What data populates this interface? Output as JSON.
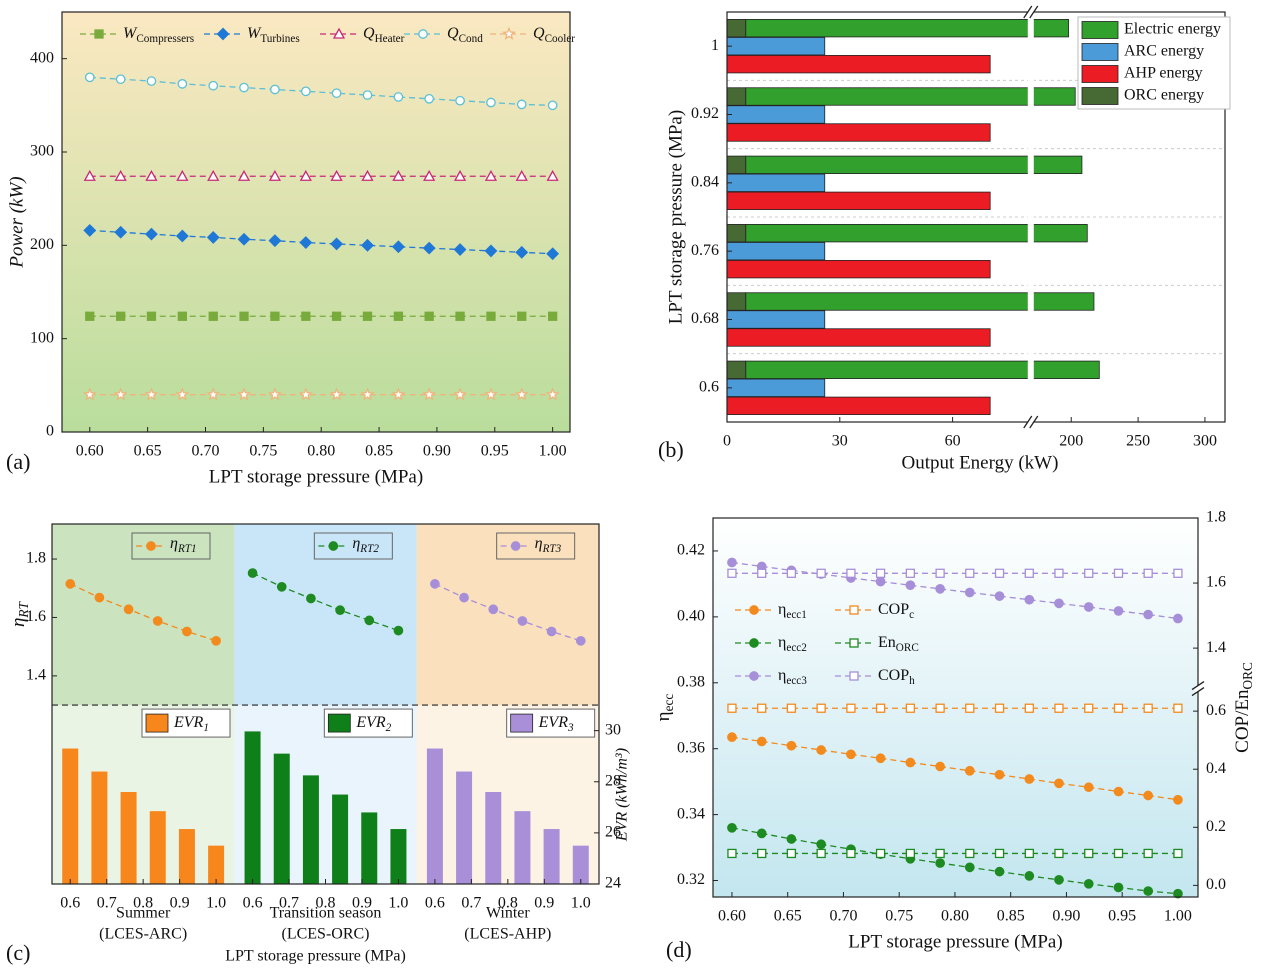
{
  "chart_data": [
    {
      "type": "line",
      "panel": "(a)",
      "xlabel": "LPT storage pressure (MPa)",
      "ylabel": "Power (kW)",
      "x": [
        0.6,
        0.6267,
        0.6533,
        0.68,
        0.7067,
        0.7333,
        0.76,
        0.7867,
        0.8133,
        0.84,
        0.8667,
        0.8933,
        0.92,
        0.9467,
        0.9733,
        1.0
      ],
      "xlim": [
        0.576,
        1.015
      ],
      "xticks": [
        {
          "value": 0.6,
          "label": "0.60"
        },
        {
          "value": 0.65,
          "label": "0.65"
        },
        {
          "value": 0.7,
          "label": "0.70"
        },
        {
          "value": 0.75,
          "label": "0.75"
        },
        {
          "value": 0.8,
          "label": "0.80"
        },
        {
          "value": 0.85,
          "label": "0.85"
        },
        {
          "value": 0.9,
          "label": "0.90"
        },
        {
          "value": 0.95,
          "label": "0.95"
        },
        {
          "value": 1.0,
          "label": "1.00"
        }
      ],
      "ylim": [
        0,
        450
      ],
      "yticks": [
        0,
        100,
        200,
        300,
        400
      ],
      "legend": "top",
      "series": [
        {
          "name": "W",
          "sub": "Compressers",
          "color": "#79ab3c",
          "marker": "square",
          "filled": true,
          "values": [
            124,
            124,
            124,
            124,
            124,
            124,
            124,
            124,
            124,
            124,
            124,
            124,
            124,
            124,
            124,
            124
          ]
        },
        {
          "name": "W",
          "sub": "Turbines",
          "color": "#1f78d6",
          "marker": "diamond",
          "filled": true,
          "values": [
            216,
            214,
            212,
            210,
            208.5,
            206.5,
            205,
            203,
            201.5,
            200,
            198.5,
            197,
            195.5,
            194,
            192.5,
            191
          ]
        },
        {
          "name": "Q",
          "sub": "Heater",
          "color": "#c8297a",
          "marker": "triangle",
          "filled": false,
          "values": [
            274,
            274,
            274,
            274,
            274,
            274,
            274,
            274,
            274,
            274,
            274,
            274,
            274,
            274,
            274,
            274
          ]
        },
        {
          "name": "Q",
          "sub": "Cond",
          "color": "#5bbfd6",
          "marker": "circle",
          "filled": false,
          "values": [
            380,
            378,
            376,
            373,
            371,
            369,
            367,
            365,
            363,
            361,
            359,
            357,
            355,
            353,
            351,
            350
          ]
        },
        {
          "name": "Q",
          "sub": "Cooler",
          "color": "#eeb47c",
          "marker": "star",
          "filled": false,
          "values": [
            40,
            40,
            40,
            40,
            40,
            40,
            40,
            40,
            40,
            40,
            40,
            40,
            40,
            40,
            40,
            40
          ]
        }
      ]
    },
    {
      "type": "bar",
      "orientation": "horizontal",
      "panel": "(b)",
      "xlabel": "Output Energy (kW)",
      "ylabel": "LPT storage pressure (MPa)",
      "categories": [
        "0.6",
        "0.68",
        "0.76",
        "0.84",
        "0.92",
        "1"
      ],
      "xlim": [
        0,
        315
      ],
      "xbreak": [
        80,
        172
      ],
      "xticks": [
        0,
        30,
        60,
        200,
        250,
        300
      ],
      "grid": true,
      "legend": "upper right",
      "series": [
        {
          "name": "Electric energy",
          "color": "#32a02c",
          "group": 0,
          "values": [
            216,
            212,
            207,
            203,
            198,
            193
          ]
        },
        {
          "name": "ARC energy",
          "color": "#4c9bd9",
          "group": 1,
          "values": [
            26,
            26,
            26,
            26,
            26,
            26
          ]
        },
        {
          "name": "AHP energy",
          "color": "#ec1c24",
          "group": 2,
          "values": [
            70,
            70,
            70,
            70,
            70,
            70
          ]
        },
        {
          "name": "ORC energy",
          "color": "#476a35",
          "group": 0,
          "values": [
            5,
            5,
            5,
            5,
            5,
            5
          ]
        }
      ]
    },
    {
      "type": "panels",
      "panel": "(c)",
      "xlabel": "LPT storage pressure (MPa)",
      "ylabel": "η",
      "ylabel_sub": "RT",
      "y2label": "EVR (kWh/m³)",
      "x": [
        0.6,
        0.68,
        0.76,
        0.84,
        0.92,
        1.0
      ],
      "xlim": [
        0.55,
        1.05
      ],
      "xticks": [
        0.6,
        0.7,
        0.8,
        0.9,
        {
          "value": 1.0,
          "label": "1.0"
        }
      ],
      "ylim": [
        1.3,
        1.92
      ],
      "yticks": [
        1.4,
        1.6,
        1.8
      ],
      "y2lim": [
        24,
        31
      ],
      "y2ticks": [
        24,
        26,
        28,
        30
      ],
      "groups": [
        {
          "label": "Summer",
          "sublabel": "(LCES-ARC)",
          "background": "#b9d9a8",
          "series": [
            {
              "name": "η",
              "sub": "RT1",
              "color": "#f28a1e",
              "values": [
                1.715,
                1.668,
                1.628,
                1.588,
                1.552,
                1.52
              ]
            },
            {
              "name": "EVR",
              "sub": "1",
              "color": "#f7871d",
              "axis": "y2",
              "values": [
                29.3,
                28.4,
                27.6,
                26.85,
                26.15,
                25.5
              ]
            }
          ]
        },
        {
          "label": "Transition season",
          "sublabel": "(LCES-ORC)",
          "background": "#b7dcf6",
          "series": [
            {
              "name": "η",
              "sub": "RT2",
              "color": "#1e8a22",
              "values": [
                1.752,
                1.705,
                1.665,
                1.625,
                1.59,
                1.555
              ]
            },
            {
              "name": "EVR",
              "sub": "2",
              "color": "#0f7f1a",
              "axis": "y2",
              "values": [
                29.97,
                29.1,
                28.25,
                27.5,
                26.8,
                26.15
              ]
            }
          ]
        },
        {
          "label": "Winter",
          "sublabel": "(LCES-AHP)",
          "background": "#fad6a8",
          "series": [
            {
              "name": "η",
              "sub": "RT3",
              "color": "#a68ed8",
              "values": [
                1.715,
                1.668,
                1.628,
                1.588,
                1.552,
                1.52
              ]
            },
            {
              "name": "EVR",
              "sub": "3",
              "color": "#a98fd8",
              "axis": "y2",
              "values": [
                29.3,
                28.4,
                27.6,
                26.85,
                26.15,
                25.5
              ]
            }
          ]
        }
      ]
    },
    {
      "type": "line",
      "panel": "(d)",
      "xlabel": "LPT storage pressure (MPa)",
      "ylabel": "η",
      "ylabel_sub": "ecc",
      "y2label": "COP/En",
      "y2label_sub": "ORC",
      "x": [
        0.6,
        0.6267,
        0.6533,
        0.68,
        0.7067,
        0.7333,
        0.76,
        0.7867,
        0.8133,
        0.84,
        0.8667,
        0.8933,
        0.92,
        0.9467,
        0.9733,
        1.0
      ],
      "xlim": [
        0.583,
        1.018
      ],
      "xticks": [
        {
          "value": 0.6,
          "label": "0.60"
        },
        {
          "value": 0.65,
          "label": "0.65"
        },
        {
          "value": 0.7,
          "label": "0.70"
        },
        {
          "value": 0.75,
          "label": "0.75"
        },
        {
          "value": 0.8,
          "label": "0.80"
        },
        {
          "value": 0.85,
          "label": "0.85"
        },
        {
          "value": 0.9,
          "label": "0.90"
        },
        {
          "value": 0.95,
          "label": "0.95"
        },
        {
          "value": 1.0,
          "label": "1.00"
        }
      ],
      "ylim": [
        0.315,
        0.43
      ],
      "yticks": [
        0.32,
        0.34,
        0.36,
        0.38,
        {
          "value": 0.4,
          "label": "0.40"
        },
        0.42
      ],
      "y2lim": [
        -0.04,
        1.8
      ],
      "y2break": [
        0.664,
        1.288
      ],
      "y2ticks": [
        {
          "value": 0,
          "label": "0.0"
        },
        0.2,
        0.4,
        0.6,
        1.4,
        1.6,
        1.8
      ],
      "legend": "center left",
      "series": [
        {
          "name": "η",
          "sub": "ecc1",
          "color": "#f28a1e",
          "marker": "circle",
          "filled": true,
          "values": [
            0.3635,
            0.3622,
            0.3609,
            0.3596,
            0.3583,
            0.3571,
            0.3558,
            0.3546,
            0.3533,
            0.3521,
            0.3508,
            0.3495,
            0.3483,
            0.347,
            0.3458,
            0.3445
          ]
        },
        {
          "name": "COP",
          "sub": "c",
          "color": "#f28a1e",
          "marker": "square",
          "filled": false,
          "axis": "y2",
          "values": [
            0.61,
            0.61,
            0.61,
            0.61,
            0.61,
            0.61,
            0.61,
            0.61,
            0.61,
            0.61,
            0.61,
            0.61,
            0.61,
            0.61,
            0.61,
            0.61
          ]
        },
        {
          "name": "η",
          "sub": "ecc2",
          "color": "#1e8a22",
          "marker": "circle",
          "filled": true,
          "values": [
            0.336,
            0.3343,
            0.3326,
            0.331,
            0.3295,
            0.328,
            0.3266,
            0.3253,
            0.324,
            0.3227,
            0.3214,
            0.3202,
            0.319,
            0.3179,
            0.3168,
            0.316
          ]
        },
        {
          "name": "En",
          "sub": "ORC",
          "color": "#1e8a22",
          "marker": "square",
          "filled": false,
          "axis": "y2",
          "values": [
            0.11,
            0.11,
            0.11,
            0.11,
            0.11,
            0.11,
            0.11,
            0.11,
            0.11,
            0.11,
            0.11,
            0.11,
            0.11,
            0.11,
            0.11,
            0.11
          ]
        },
        {
          "name": "η",
          "sub": "ecc3",
          "color": "#a68ed8",
          "marker": "circle",
          "filled": true,
          "values": [
            0.4165,
            0.4153,
            0.4141,
            0.413,
            0.4118,
            0.4107,
            0.4096,
            0.4085,
            0.4074,
            0.4063,
            0.4052,
            0.4041,
            0.403,
            0.4018,
            0.4007,
            0.3995
          ]
        },
        {
          "name": "COP",
          "sub": "h",
          "color": "#a68ed8",
          "marker": "square",
          "filled": false,
          "axis": "y2",
          "values": [
            1.63,
            1.63,
            1.63,
            1.63,
            1.63,
            1.63,
            1.63,
            1.63,
            1.63,
            1.63,
            1.63,
            1.63,
            1.63,
            1.63,
            1.63,
            1.63
          ]
        }
      ]
    }
  ]
}
